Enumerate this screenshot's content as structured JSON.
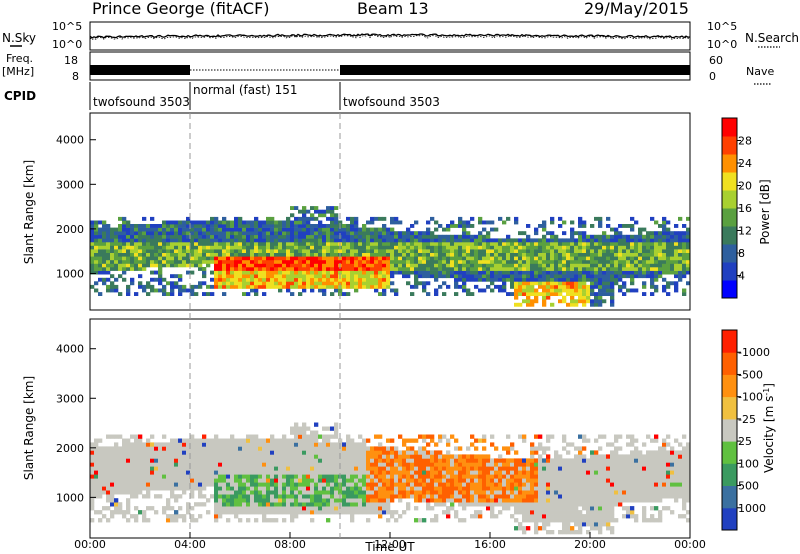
{
  "header": {
    "radar_title": "Prince George (fitACF)",
    "beam": "Beam 13",
    "date": "29/May/2015"
  },
  "top_panels": {
    "nsky_label": "N.Sky",
    "nsearch_label": "N.Search",
    "noise_ticks": [
      "10^5",
      "10^0"
    ],
    "freq_label": "Freq.",
    "freq_unit": "[MHz]",
    "freq_ticks": [
      "18",
      "8"
    ],
    "nave_label": "Nave",
    "nave_ticks": [
      "60",
      "0"
    ],
    "cpid_label": "CPID",
    "cpid_segments": [
      {
        "label": "twofsound 3503",
        "start": 0,
        "end": 4
      },
      {
        "label": "normal (fast) 151",
        "start": 4,
        "end": 10
      },
      {
        "label": "twofsound 3503",
        "start": 10,
        "end": 24
      }
    ]
  },
  "chart_data": [
    {
      "type": "heatmap",
      "title": "Power",
      "ylabel": "Slant Range [km]",
      "xlabel": "",
      "ylim": [
        180,
        4600
      ],
      "yticks": [
        1000,
        2000,
        3000,
        4000
      ],
      "xlim": [
        0,
        24
      ],
      "colorbar_label": "Power [dB]",
      "colorbar_ticks": [
        "4",
        "8",
        "12",
        "16",
        "20",
        "24",
        "28"
      ],
      "colorbar_range": [
        0,
        30
      ],
      "colors": [
        "#0000ff",
        "#2040c0",
        "#2e5f9e",
        "#3a7a5c",
        "#5aa040",
        "#a8d030",
        "#f0e020",
        "#ff9000",
        "#ff4000",
        "#ff0000"
      ]
    },
    {
      "type": "heatmap",
      "title": "Velocity",
      "ylabel": "Slant Range [km]",
      "xlabel": "Time UT",
      "ylim": [
        180,
        4600
      ],
      "yticks": [
        1000,
        2000,
        3000,
        4000
      ],
      "xlim": [
        0,
        24
      ],
      "xticks": [
        "00:00",
        "04:00",
        "08:00",
        "12:00",
        "16:00",
        "20:00",
        "00:00"
      ],
      "colorbar_label": "Velocity [m s^-1]",
      "colorbar_ticks": [
        "1000",
        "500",
        "100",
        "25",
        "-25",
        "-100",
        "-500",
        "-1000"
      ],
      "colors": [
        "#2040c0",
        "#3a70a0",
        "#3a9a60",
        "#60c040",
        "#c8c8c0",
        "#f0c040",
        "#ff9010",
        "#ff6000",
        "#ff2000",
        "#ff0000"
      ]
    }
  ]
}
